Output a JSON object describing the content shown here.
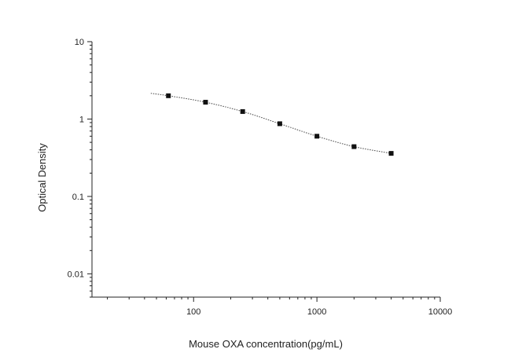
{
  "chart_data": {
    "type": "scatter",
    "xlabel": "Mouse OXA concentration(pg/mL)",
    "ylabel": "Optical Density",
    "x_scale": "log",
    "y_scale": "log",
    "xlim": [
      15,
      10000
    ],
    "ylim": [
      0.005,
      10
    ],
    "x_ticks": [
      {
        "value": 100,
        "label": "100"
      },
      {
        "value": 1000,
        "label": "1000"
      },
      {
        "value": 10000,
        "label": "10000"
      }
    ],
    "y_ticks": [
      {
        "value": 10,
        "label": "10"
      },
      {
        "value": 1,
        "label": "1"
      },
      {
        "value": 0.1,
        "label": "0.1"
      },
      {
        "value": 0.01,
        "label": "0.01"
      }
    ],
    "series": [
      {
        "x": [
          62.5,
          125,
          250,
          500,
          1000,
          2000,
          4000
        ],
        "y": [
          2.0,
          1.65,
          1.25,
          0.87,
          0.6,
          0.44,
          0.36
        ]
      }
    ],
    "fit_curve": {
      "style": "dotted",
      "x": [
        45,
        62.5,
        125,
        250,
        500,
        1000,
        2000,
        4000
      ],
      "y": [
        2.15,
        2.0,
        1.65,
        1.25,
        0.87,
        0.6,
        0.44,
        0.36
      ]
    },
    "grid": false,
    "colors": {
      "axis": "#222222",
      "marker": "#111111",
      "curve": "#444444"
    }
  }
}
